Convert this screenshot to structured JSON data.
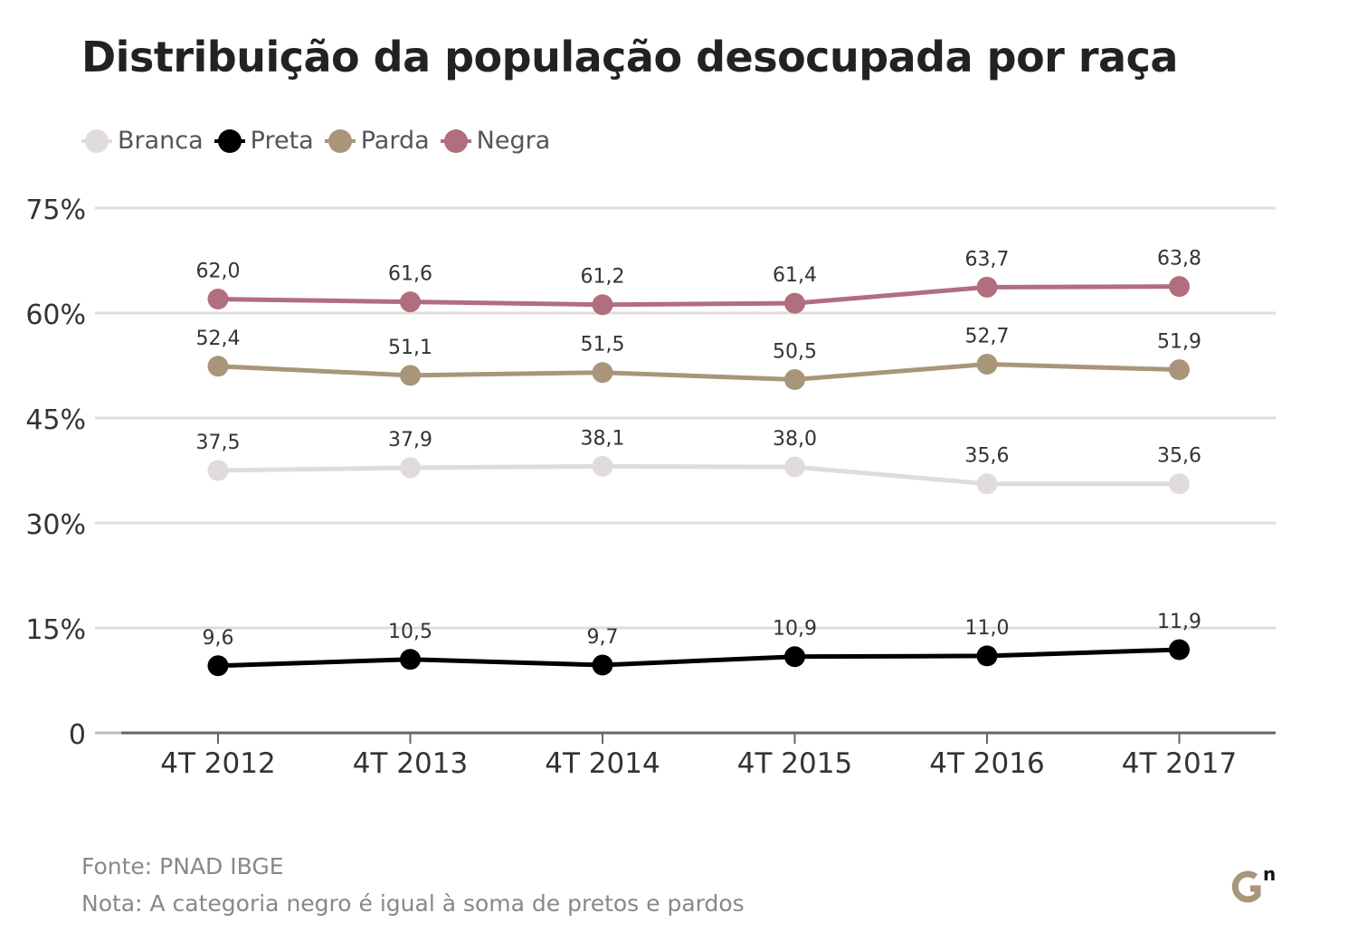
{
  "title": "Distribuição da população desocupada por raça",
  "source": "Fonte: PNAD IBGE",
  "note": "Nota: A categoria negro é igual à soma de pretos e pardos",
  "logo_text": "Gn",
  "chart_data": {
    "type": "line",
    "categories": [
      "4T 2012",
      "4T 2013",
      "4T 2014",
      "4T 2015",
      "4T 2016",
      "4T 2017"
    ],
    "ylim": [
      0,
      75
    ],
    "yticks": [
      0,
      15,
      30,
      45,
      60,
      75
    ],
    "ytick_labels": [
      "0",
      "15%",
      "30%",
      "45%",
      "60%",
      "75%"
    ],
    "grid": true,
    "legend_position": "top-left",
    "series": [
      {
        "name": "Branca",
        "color": "#e1dcdc",
        "values": [
          37.5,
          37.9,
          38.1,
          38.0,
          35.6,
          35.6
        ],
        "labels": [
          "37,5",
          "37,9",
          "38,1",
          "38,0",
          "35,6",
          "35,6"
        ]
      },
      {
        "name": "Preta",
        "color": "#000000",
        "values": [
          9.6,
          10.5,
          9.7,
          10.9,
          11.0,
          11.9
        ],
        "labels": [
          "9,6",
          "10,5",
          "9,7",
          "10,9",
          "11,0",
          "11,9"
        ]
      },
      {
        "name": "Parda",
        "color": "#a8957a",
        "values": [
          52.4,
          51.1,
          51.5,
          50.5,
          52.7,
          51.9
        ],
        "labels": [
          "52,4",
          "51,1",
          "51,5",
          "50,5",
          "52,7",
          "51,9"
        ]
      },
      {
        "name": "Negra",
        "color": "#b06e7e",
        "values": [
          62.0,
          61.6,
          61.2,
          61.4,
          63.7,
          63.8
        ],
        "labels": [
          "62,0",
          "61,6",
          "61,2",
          "61,4",
          "63,7",
          "63,8"
        ]
      }
    ]
  }
}
